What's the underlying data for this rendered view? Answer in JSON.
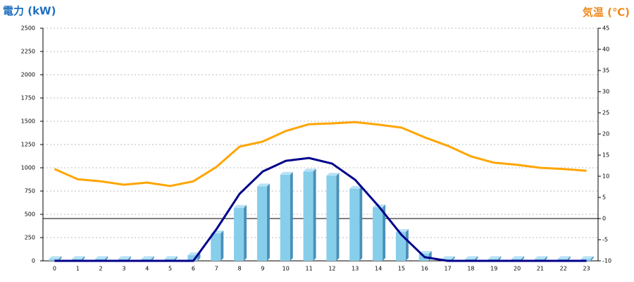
{
  "chart_data": {
    "type": "bar",
    "y_title": "電力 (kW)",
    "y2_title": "気温 (℃)",
    "categories": [
      "0",
      "1",
      "2",
      "3",
      "4",
      "5",
      "6",
      "7",
      "8",
      "9",
      "10",
      "11",
      "12",
      "13",
      "14",
      "15",
      "16",
      "17",
      "18",
      "19",
      "20",
      "21",
      "22",
      "23"
    ],
    "series": [
      {
        "type": "bar",
        "color": "#87ceeb",
        "values": [
          20,
          20,
          20,
          20,
          20,
          20,
          60,
          295,
          570,
          800,
          925,
          960,
          915,
          775,
          575,
          310,
          75,
          20,
          20,
          20,
          20,
          20,
          20,
          20
        ]
      },
      {
        "type": "line",
        "color": "#00008b",
        "values": [
          0,
          0,
          0,
          0,
          0,
          0,
          0,
          340,
          720,
          960,
          1075,
          1105,
          1045,
          870,
          590,
          280,
          40,
          0,
          0,
          0,
          0,
          0,
          0,
          0
        ]
      },
      {
        "type": "line",
        "axis": "y2",
        "color": "#ffa500",
        "values": [
          11.7,
          9.3,
          8.8,
          8.0,
          8.5,
          7.7,
          8.8,
          12.2,
          17.0,
          18.2,
          20.7,
          22.3,
          22.5,
          22.8,
          22.2,
          21.5,
          19.2,
          17.2,
          14.7,
          13.2,
          12.7,
          12.0,
          11.7,
          11.3
        ]
      }
    ],
    "ylim": [
      0,
      2500
    ],
    "yticks": [
      0,
      250,
      500,
      750,
      1000,
      1250,
      1500,
      1750,
      2000,
      2250,
      2500
    ],
    "y2lim": [
      -10,
      45
    ],
    "y2ticks": [
      -10,
      -5,
      0,
      5,
      10,
      15,
      20,
      25,
      30,
      35,
      40,
      45
    ],
    "grid": true
  }
}
